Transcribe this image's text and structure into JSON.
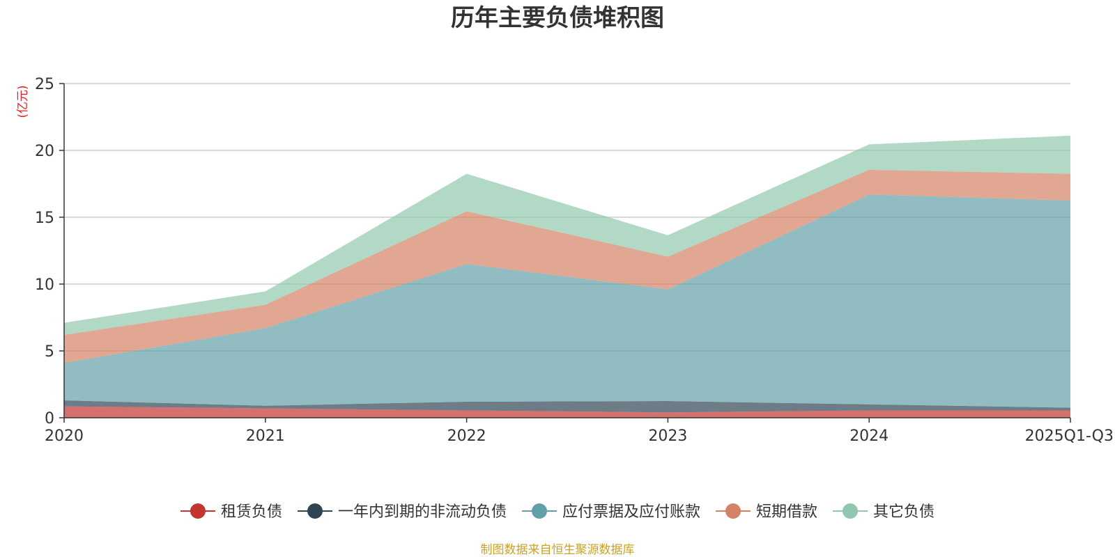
{
  "chart_data": {
    "type": "area",
    "stacked": true,
    "title": "历年主要负债堆积图",
    "unit_label": "(亿元)",
    "source_text": "制图数据来自恒生聚源数据库",
    "categories": [
      "2020",
      "2021",
      "2022",
      "2023",
      "2024",
      "2025Q1-Q3"
    ],
    "ylim": [
      0,
      25
    ],
    "yticks": [
      0,
      5,
      10,
      15,
      20,
      25
    ],
    "grid": true,
    "legend_position": "bottom",
    "series": [
      {
        "name": "租赁负债",
        "color": "#c23531",
        "values": [
          0.85,
          0.7,
          0.55,
          0.4,
          0.55,
          0.55
        ]
      },
      {
        "name": "一年内到期的非流动负债",
        "color": "#2f4554",
        "values": [
          0.45,
          0.2,
          0.65,
          0.85,
          0.45,
          0.2
        ]
      },
      {
        "name": "应付票据及应付账款",
        "color": "#61a0a8",
        "values": [
          2.8,
          5.8,
          10.3,
          8.35,
          15.7,
          15.5
        ]
      },
      {
        "name": "短期借款",
        "color": "#d48265",
        "values": [
          2.1,
          1.75,
          3.95,
          2.45,
          1.85,
          2.0
        ]
      },
      {
        "name": "其它负债",
        "color": "#91c7ae",
        "values": [
          0.9,
          1.0,
          2.8,
          1.6,
          1.9,
          2.85
        ]
      }
    ],
    "colors": {
      "title": "#333333",
      "unit": "#e02020",
      "source": "#c9a227",
      "grid": "#cccccc",
      "axis": "#333333"
    }
  }
}
